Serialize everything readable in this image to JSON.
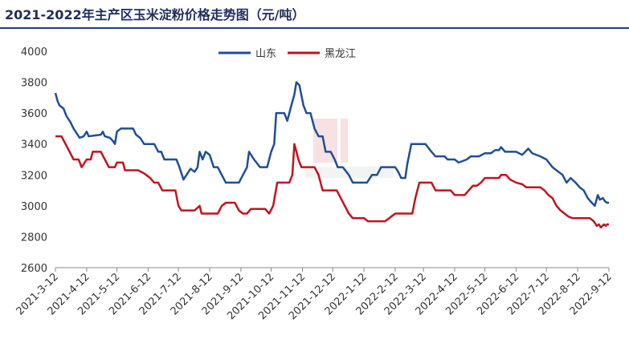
{
  "chart_data": {
    "type": "line",
    "title": "2021-2022年主产区玉米淀粉价格走势图（元/吨）",
    "xlabel": "",
    "ylabel": "",
    "ylim": [
      2600,
      4000
    ],
    "yticks": [
      2600,
      2800,
      3000,
      3200,
      3400,
      3600,
      3800,
      4000
    ],
    "xticks": [
      "2021-3-12",
      "2021-4-12",
      "2021-5-12",
      "2021-6-12",
      "2021-7-12",
      "2021-8-12",
      "2021-9-12",
      "2021-10-12",
      "2021-11-12",
      "2021-12-12",
      "2022-1-12",
      "2022-2-12",
      "2022-3-12",
      "2022-4-12",
      "2022-5-12",
      "2022-6-12",
      "2022-7-12",
      "2022-8-12",
      "2022-9-12"
    ],
    "grid": false,
    "legend": "top-center",
    "series": [
      {
        "name": "山东",
        "color": "#1f4e96",
        "points": [
          [
            "2021-03-12",
            3730
          ],
          [
            "2021-03-14",
            3680
          ],
          [
            "2021-03-16",
            3650
          ],
          [
            "2021-03-20",
            3630
          ],
          [
            "2021-03-23",
            3580
          ],
          [
            "2021-03-27",
            3540
          ],
          [
            "2021-03-30",
            3500
          ],
          [
            "2021-04-02",
            3470
          ],
          [
            "2021-04-05",
            3440
          ],
          [
            "2021-04-09",
            3450
          ],
          [
            "2021-04-12",
            3480
          ],
          [
            "2021-04-14",
            3450
          ],
          [
            "2021-04-26",
            3460
          ],
          [
            "2021-04-28",
            3480
          ],
          [
            "2021-04-30",
            3450
          ],
          [
            "2021-05-05",
            3440
          ],
          [
            "2021-05-08",
            3420
          ],
          [
            "2021-05-10",
            3400
          ],
          [
            "2021-05-12",
            3480
          ],
          [
            "2021-05-16",
            3500
          ],
          [
            "2021-05-28",
            3500
          ],
          [
            "2021-05-31",
            3460
          ],
          [
            "2021-06-04",
            3440
          ],
          [
            "2021-06-08",
            3400
          ],
          [
            "2021-06-18",
            3400
          ],
          [
            "2021-06-22",
            3350
          ],
          [
            "2021-06-25",
            3350
          ],
          [
            "2021-06-28",
            3300
          ],
          [
            "2021-07-10",
            3300
          ],
          [
            "2021-07-13",
            3250
          ],
          [
            "2021-07-17",
            3170
          ],
          [
            "2021-07-20",
            3200
          ],
          [
            "2021-07-24",
            3240
          ],
          [
            "2021-07-28",
            3220
          ],
          [
            "2021-07-31",
            3250
          ],
          [
            "2021-08-02",
            3350
          ],
          [
            "2021-08-05",
            3300
          ],
          [
            "2021-08-08",
            3350
          ],
          [
            "2021-08-12",
            3330
          ],
          [
            "2021-08-16",
            3250
          ],
          [
            "2021-08-20",
            3250
          ],
          [
            "2021-08-24",
            3200
          ],
          [
            "2021-08-28",
            3150
          ],
          [
            "2021-09-02",
            3150
          ],
          [
            "2021-09-06",
            3150
          ],
          [
            "2021-09-10",
            3150
          ],
          [
            "2021-09-14",
            3200
          ],
          [
            "2021-09-18",
            3250
          ],
          [
            "2021-09-20",
            3350
          ],
          [
            "2021-09-25",
            3300
          ],
          [
            "2021-10-01",
            3250
          ],
          [
            "2021-10-08",
            3250
          ],
          [
            "2021-10-12",
            3350
          ],
          [
            "2021-10-15",
            3400
          ],
          [
            "2021-10-17",
            3600
          ],
          [
            "2021-10-25",
            3600
          ],
          [
            "2021-10-28",
            3550
          ],
          [
            "2021-11-01",
            3650
          ],
          [
            "2021-11-04",
            3720
          ],
          [
            "2021-11-06",
            3800
          ],
          [
            "2021-11-09",
            3780
          ],
          [
            "2021-11-13",
            3650
          ],
          [
            "2021-11-16",
            3600
          ],
          [
            "2021-11-20",
            3600
          ],
          [
            "2021-11-24",
            3500
          ],
          [
            "2021-11-28",
            3450
          ],
          [
            "2021-12-02",
            3450
          ],
          [
            "2021-12-05",
            3350
          ],
          [
            "2021-12-10",
            3350
          ],
          [
            "2021-12-14",
            3300
          ],
          [
            "2021-12-17",
            3250
          ],
          [
            "2021-12-22",
            3250
          ],
          [
            "2021-12-28",
            3200
          ],
          [
            "2022-01-01",
            3150
          ],
          [
            "2022-01-06",
            3150
          ],
          [
            "2022-01-10",
            3150
          ],
          [
            "2022-01-15",
            3150
          ],
          [
            "2022-01-20",
            3200
          ],
          [
            "2022-01-25",
            3200
          ],
          [
            "2022-01-29",
            3250
          ],
          [
            "2022-02-05",
            3250
          ],
          [
            "2022-02-12",
            3250
          ],
          [
            "2022-02-15",
            3220
          ],
          [
            "2022-02-18",
            3180
          ],
          [
            "2022-02-22",
            3180
          ],
          [
            "2022-02-24",
            3270
          ],
          [
            "2022-02-28",
            3400
          ],
          [
            "2022-03-05",
            3400
          ],
          [
            "2022-03-14",
            3400
          ],
          [
            "2022-03-20",
            3350
          ],
          [
            "2022-03-24",
            3320
          ],
          [
            "2022-04-02",
            3320
          ],
          [
            "2022-04-05",
            3300
          ],
          [
            "2022-04-12",
            3300
          ],
          [
            "2022-04-16",
            3280
          ],
          [
            "2022-04-24",
            3300
          ],
          [
            "2022-04-28",
            3320
          ],
          [
            "2022-05-06",
            3320
          ],
          [
            "2022-05-12",
            3340
          ],
          [
            "2022-05-18",
            3340
          ],
          [
            "2022-05-22",
            3360
          ],
          [
            "2022-05-26",
            3360
          ],
          [
            "2022-05-28",
            3380
          ],
          [
            "2022-06-01",
            3350
          ],
          [
            "2022-06-12",
            3350
          ],
          [
            "2022-06-18",
            3330
          ],
          [
            "2022-06-24",
            3370
          ],
          [
            "2022-06-28",
            3340
          ],
          [
            "2022-07-06",
            3320
          ],
          [
            "2022-07-12",
            3300
          ],
          [
            "2022-07-18",
            3250
          ],
          [
            "2022-07-24",
            3220
          ],
          [
            "2022-07-28",
            3200
          ],
          [
            "2022-08-01",
            3150
          ],
          [
            "2022-08-05",
            3180
          ],
          [
            "2022-08-10",
            3150
          ],
          [
            "2022-08-14",
            3120
          ],
          [
            "2022-08-18",
            3100
          ],
          [
            "2022-08-22",
            3050
          ],
          [
            "2022-08-26",
            3020
          ],
          [
            "2022-08-29",
            3000
          ],
          [
            "2022-09-01",
            3070
          ],
          [
            "2022-09-03",
            3040
          ],
          [
            "2022-09-06",
            3050
          ],
          [
            "2022-09-08",
            3030
          ],
          [
            "2022-09-10",
            3020
          ],
          [
            "2022-09-12",
            3020
          ]
        ]
      },
      {
        "name": "黑龙江",
        "color": "#c0141f",
        "points": [
          [
            "2021-03-12",
            3450
          ],
          [
            "2021-03-18",
            3450
          ],
          [
            "2021-03-22",
            3400
          ],
          [
            "2021-03-26",
            3350
          ],
          [
            "2021-03-30",
            3300
          ],
          [
            "2021-04-04",
            3300
          ],
          [
            "2021-04-07",
            3250
          ],
          [
            "2021-04-12",
            3300
          ],
          [
            "2021-04-16",
            3300
          ],
          [
            "2021-04-18",
            3350
          ],
          [
            "2021-04-26",
            3350
          ],
          [
            "2021-04-30",
            3300
          ],
          [
            "2021-05-04",
            3250
          ],
          [
            "2021-05-10",
            3250
          ],
          [
            "2021-05-12",
            3280
          ],
          [
            "2021-05-18",
            3280
          ],
          [
            "2021-05-20",
            3230
          ],
          [
            "2021-06-02",
            3230
          ],
          [
            "2021-06-08",
            3210
          ],
          [
            "2021-06-14",
            3180
          ],
          [
            "2021-06-18",
            3150
          ],
          [
            "2021-06-22",
            3150
          ],
          [
            "2021-06-26",
            3100
          ],
          [
            "2021-07-09",
            3100
          ],
          [
            "2021-07-12",
            3000
          ],
          [
            "2021-07-15",
            2970
          ],
          [
            "2021-07-28",
            2970
          ],
          [
            "2021-08-02",
            3000
          ],
          [
            "2021-08-04",
            2950
          ],
          [
            "2021-08-20",
            2950
          ],
          [
            "2021-08-24",
            3000
          ],
          [
            "2021-08-28",
            3020
          ],
          [
            "2021-09-06",
            3020
          ],
          [
            "2021-09-10",
            2970
          ],
          [
            "2021-09-14",
            2950
          ],
          [
            "2021-09-18",
            2950
          ],
          [
            "2021-09-22",
            2980
          ],
          [
            "2021-10-06",
            2980
          ],
          [
            "2021-10-10",
            2950
          ],
          [
            "2021-10-14",
            3000
          ],
          [
            "2021-10-18",
            3150
          ],
          [
            "2021-10-30",
            3150
          ],
          [
            "2021-11-02",
            3200
          ],
          [
            "2021-11-04",
            3400
          ],
          [
            "2021-11-08",
            3300
          ],
          [
            "2021-11-11",
            3250
          ],
          [
            "2021-11-24",
            3250
          ],
          [
            "2021-11-28",
            3200
          ],
          [
            "2021-12-02",
            3100
          ],
          [
            "2021-12-16",
            3100
          ],
          [
            "2021-12-20",
            3050
          ],
          [
            "2021-12-24",
            3000
          ],
          [
            "2021-12-28",
            2950
          ],
          [
            "2022-01-01",
            2920
          ],
          [
            "2022-01-12",
            2920
          ],
          [
            "2022-01-16",
            2900
          ],
          [
            "2022-02-02",
            2900
          ],
          [
            "2022-02-08",
            2930
          ],
          [
            "2022-02-12",
            2950
          ],
          [
            "2022-03-01",
            2950
          ],
          [
            "2022-03-04",
            3050
          ],
          [
            "2022-03-08",
            3150
          ],
          [
            "2022-03-20",
            3150
          ],
          [
            "2022-03-24",
            3100
          ],
          [
            "2022-04-08",
            3100
          ],
          [
            "2022-04-12",
            3070
          ],
          [
            "2022-04-22",
            3070
          ],
          [
            "2022-04-26",
            3100
          ],
          [
            "2022-04-30",
            3130
          ],
          [
            "2022-05-04",
            3130
          ],
          [
            "2022-05-08",
            3150
          ],
          [
            "2022-05-12",
            3180
          ],
          [
            "2022-05-26",
            3180
          ],
          [
            "2022-05-28",
            3200
          ],
          [
            "2022-06-02",
            3200
          ],
          [
            "2022-06-06",
            3170
          ],
          [
            "2022-06-12",
            3150
          ],
          [
            "2022-06-18",
            3140
          ],
          [
            "2022-06-22",
            3120
          ],
          [
            "2022-07-06",
            3120
          ],
          [
            "2022-07-10",
            3100
          ],
          [
            "2022-07-14",
            3070
          ],
          [
            "2022-07-18",
            3050
          ],
          [
            "2022-07-22",
            3000
          ],
          [
            "2022-07-26",
            2970
          ],
          [
            "2022-07-30",
            2950
          ],
          [
            "2022-08-03",
            2930
          ],
          [
            "2022-08-07",
            2920
          ],
          [
            "2022-08-24",
            2920
          ],
          [
            "2022-08-28",
            2900
          ],
          [
            "2022-08-31",
            2870
          ],
          [
            "2022-09-02",
            2880
          ],
          [
            "2022-09-04",
            2860
          ],
          [
            "2022-09-07",
            2880
          ],
          [
            "2022-09-09",
            2870
          ],
          [
            "2022-09-10",
            2880
          ],
          [
            "2022-09-12",
            2880
          ]
        ]
      }
    ]
  }
}
